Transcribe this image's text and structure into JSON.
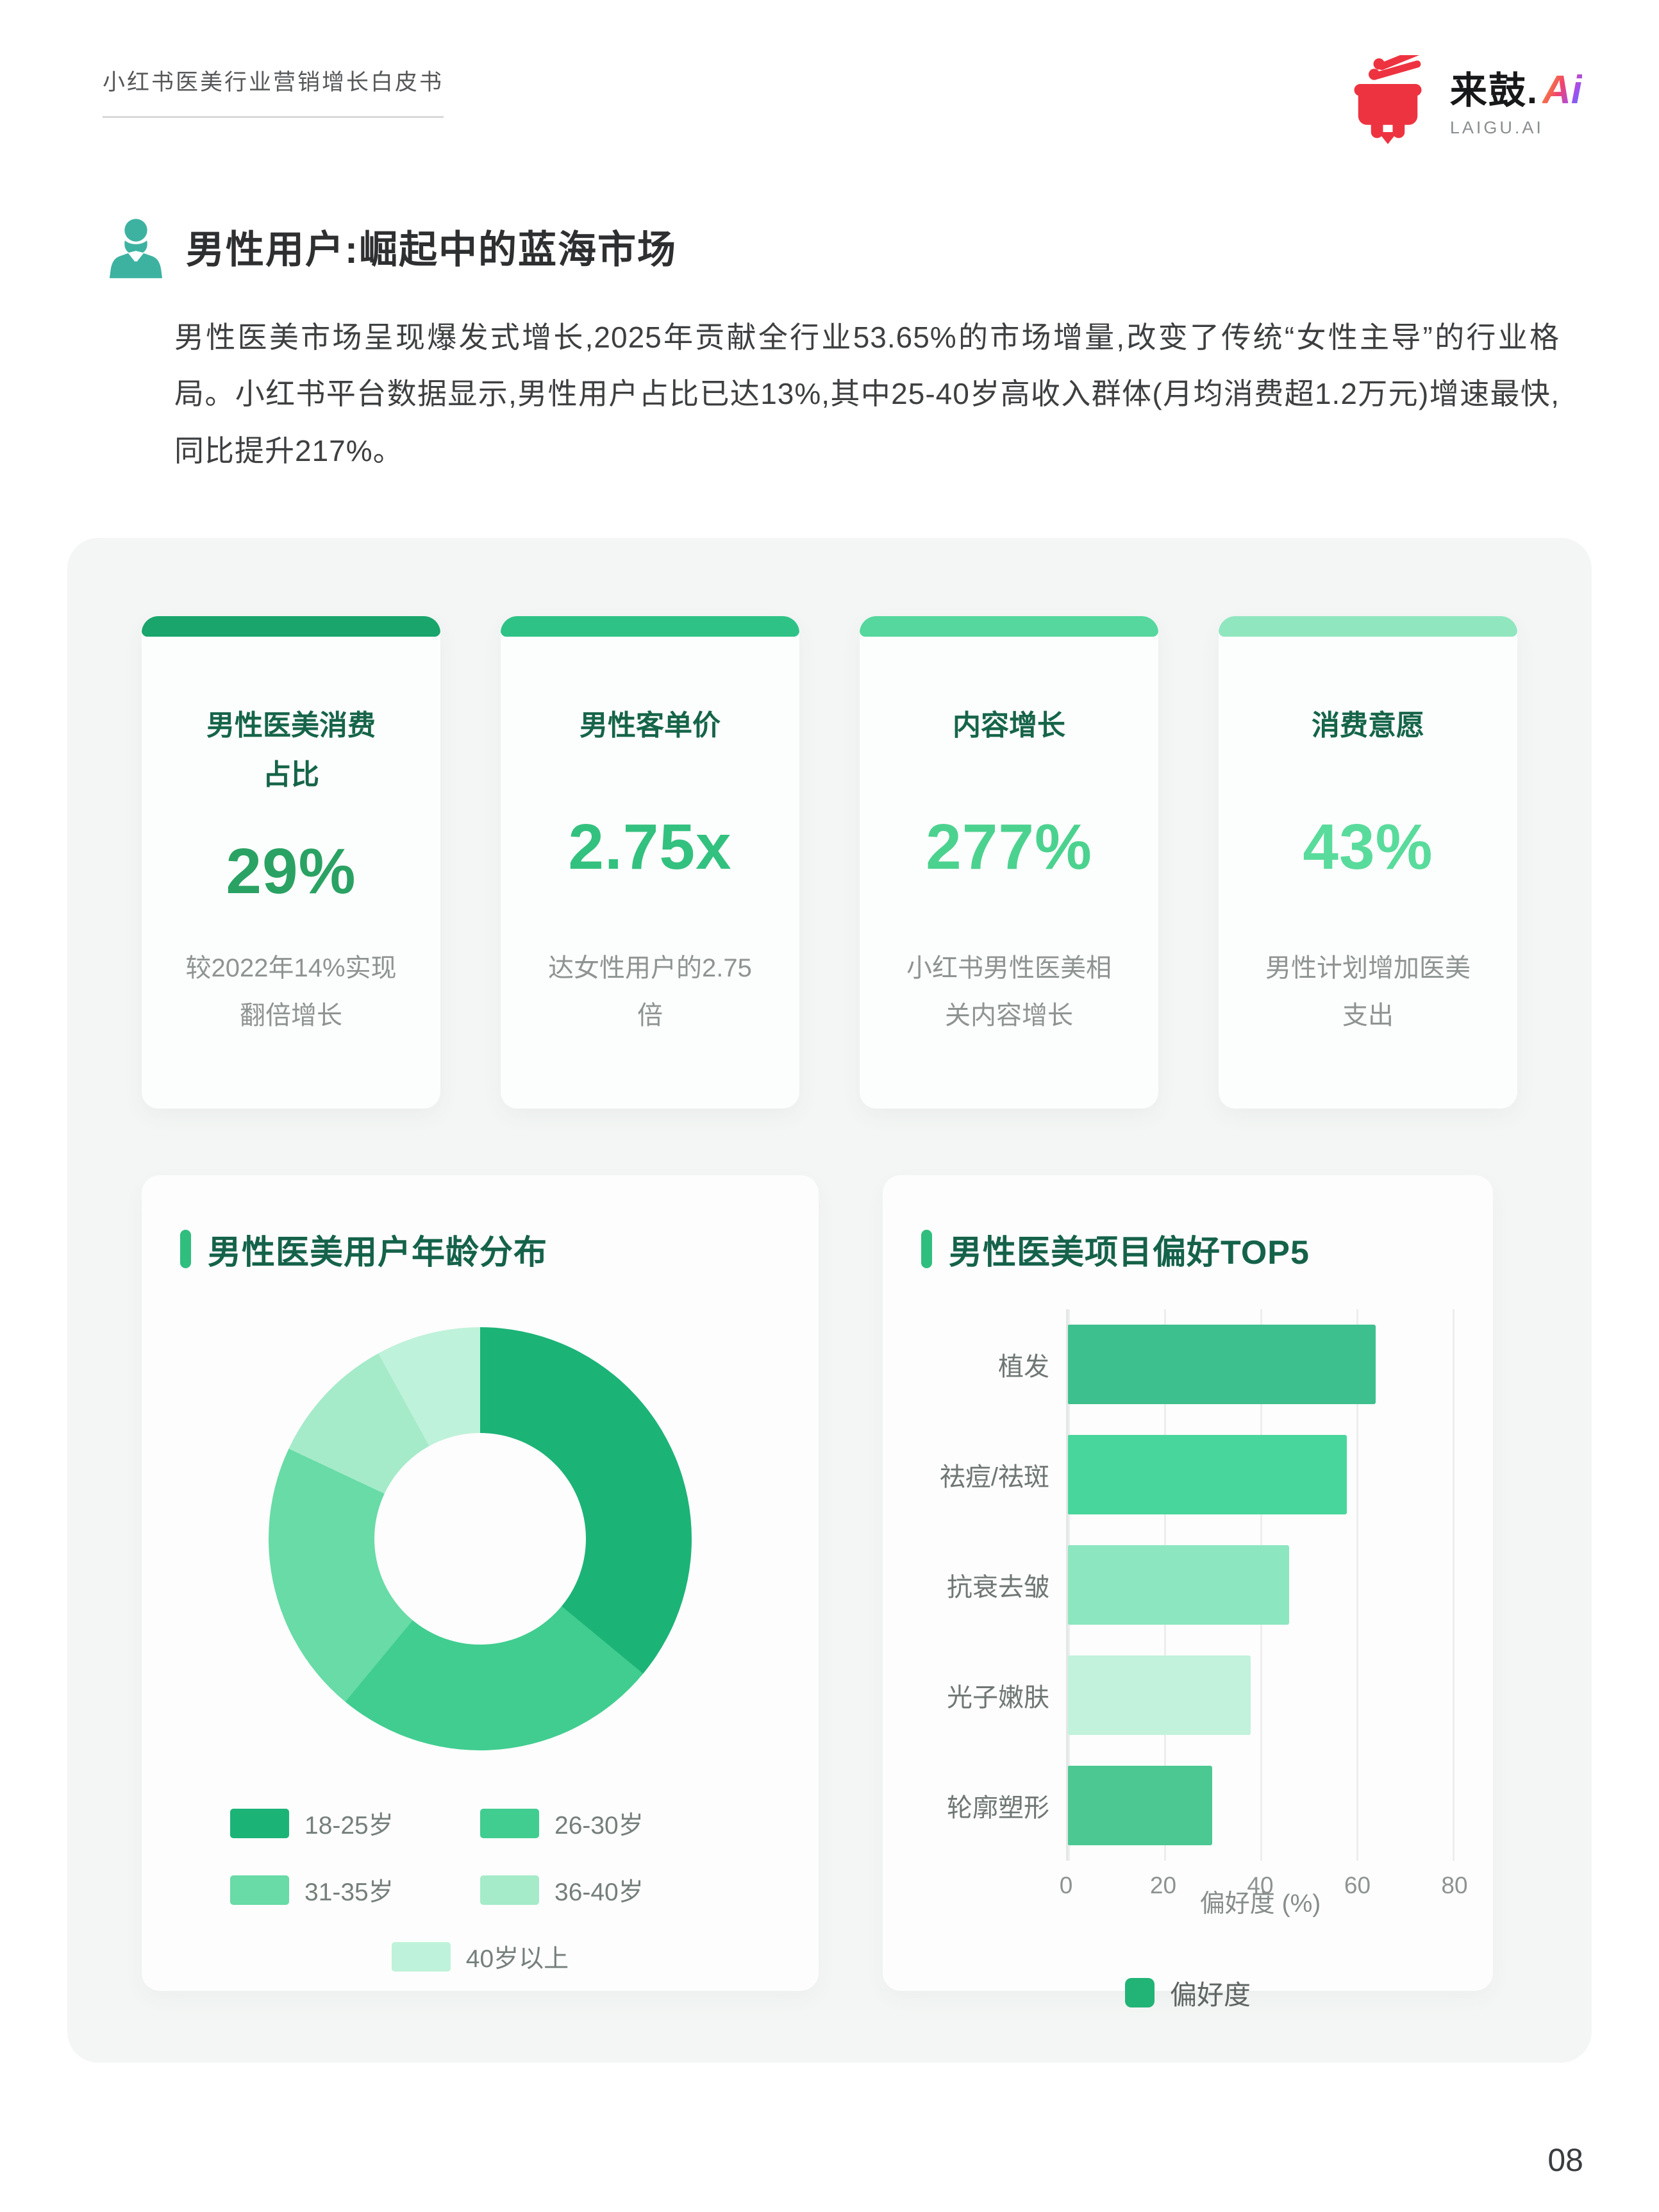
{
  "header": {
    "doc_title": "小红书医美行业营销增长白皮书",
    "logo": {
      "brand": "来鼓.",
      "brand_suffix": "Ai",
      "subtitle": "LAIGU.AI",
      "drum_color": "#ee3340"
    }
  },
  "section": {
    "title": "男性用户:崛起中的蓝海市场",
    "icon_color": "#3eb2a1",
    "paragraph": "男性医美市场呈现爆发式增长,2025年贡献全行业53.65%的市场增量,改变了传统“女性主导”的行业格局。小红书平台数据显示,男性用户占比已达13%,其中25-40岁高收入群体(月均消费超1.2万元)增速最快,同比提升217%。"
  },
  "stat_cards": [
    {
      "title": "男性医美消费占比",
      "value": "29%",
      "desc": "较2022年14%实现翻倍增长",
      "accent": "#19a56b",
      "value_color": "#2aa263"
    },
    {
      "title": "男性客单价",
      "value": "2.75x",
      "desc": "达女性用户的2.75倍",
      "accent": "#2ec287",
      "value_color": "#33c17f"
    },
    {
      "title": "内容增长",
      "value": "277%",
      "desc": "小红书男性医美相关内容增长",
      "accent": "#55d79d",
      "value_color": "#4cd28f"
    },
    {
      "title": "消费意愿",
      "value": "43%",
      "desc": "男性计划增加医美支出",
      "accent": "#90e6bf",
      "value_color": "#59db9c"
    }
  ],
  "ui_colors": {
    "chart_pill": "#2fbe7d",
    "container_bg": "#f4f6f5"
  },
  "chart_data": [
    {
      "type": "pie",
      "donut": true,
      "title": "男性医美用户年龄分布",
      "labels": [
        "18-25岁",
        "26-30岁",
        "31-35岁",
        "36-40岁",
        "40岁以上"
      ],
      "values": [
        36,
        25,
        21,
        10,
        8
      ],
      "unit": "%",
      "colors": [
        "#1cb377",
        "#41cd90",
        "#68dba6",
        "#a5ebc9",
        "#bff2da"
      ],
      "legend_position": "bottom"
    },
    {
      "type": "bar",
      "orientation": "horizontal",
      "title": "男性医美项目偏好TOP5",
      "categories": [
        "植发",
        "祛痘/祛斑",
        "抗衰去皱",
        "光子嫩肤",
        "轮廓塑形"
      ],
      "values": [
        64,
        58,
        46,
        38,
        30
      ],
      "colors": [
        "#3ec08e",
        "#49d69c",
        "#8ce6c0",
        "#c2f2dc",
        "#4cc893"
      ],
      "xlabel": "偏好度 (%)",
      "xlim": [
        0,
        80
      ],
      "xticks": [
        0,
        20,
        40,
        60,
        80
      ],
      "grid": true,
      "legend": [
        {
          "label": "偏好度",
          "color": "#22b377"
        }
      ]
    }
  ],
  "footer": {
    "page_number": "08"
  }
}
